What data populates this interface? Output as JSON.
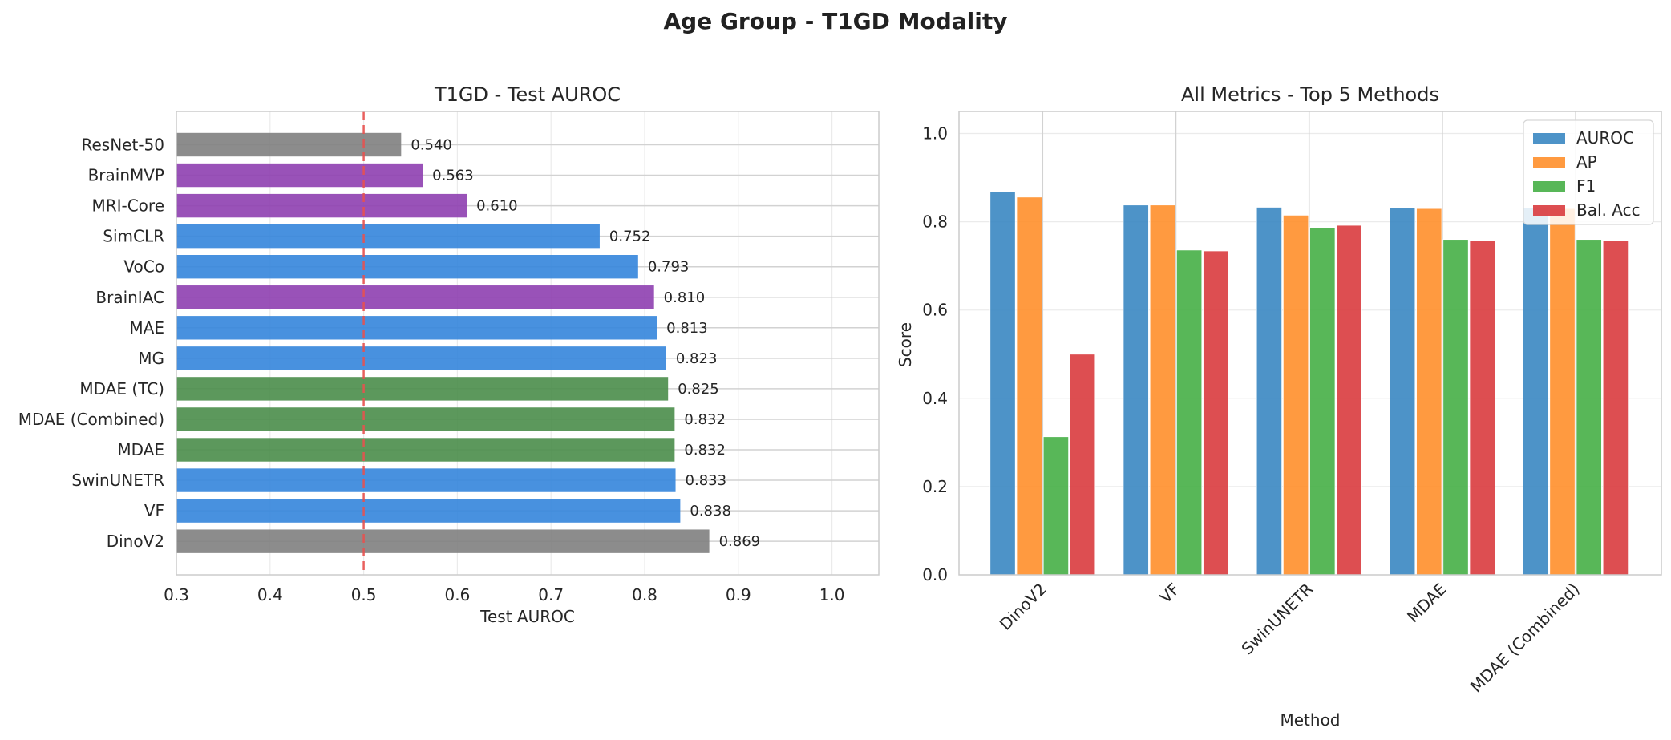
{
  "figure": {
    "title": "Age Group - T1GD Modality"
  },
  "chart_data": [
    {
      "type": "bar",
      "orientation": "horizontal",
      "title": "T1GD - Test AUROC",
      "xlabel": "Test AUROC",
      "ylabel": "",
      "xlim": [
        0.3,
        1.05
      ],
      "xticks": [
        "0.3",
        "0.4",
        "0.5",
        "0.6",
        "0.7",
        "0.8",
        "0.9",
        "1.0"
      ],
      "grid": true,
      "reference_line": {
        "x": 0.5,
        "style": "dashed",
        "color": "#e8514f"
      },
      "categories": [
        "ResNet-50",
        "BrainMVP",
        "MRI-Core",
        "SimCLR",
        "VoCo",
        "BrainIAC",
        "MAE",
        "MG",
        "MDAE (TC)",
        "MDAE (Combined)",
        "MDAE",
        "SwinUNETR",
        "VF",
        "DinoV2"
      ],
      "values": [
        0.54,
        0.563,
        0.61,
        0.752,
        0.793,
        0.81,
        0.813,
        0.823,
        0.825,
        0.832,
        0.832,
        0.833,
        0.838,
        0.869
      ],
      "value_labels": [
        "0.540",
        "0.563",
        "0.610",
        "0.752",
        "0.793",
        "0.810",
        "0.813",
        "0.823",
        "0.825",
        "0.832",
        "0.832",
        "0.833",
        "0.838",
        "0.869"
      ],
      "bar_colors": [
        "#808080",
        "#8e3fb0",
        "#8e3fb0",
        "#3485dc",
        "#3485dc",
        "#8e3fb0",
        "#3485dc",
        "#3485dc",
        "#4a8d4a",
        "#4a8d4a",
        "#4a8d4a",
        "#3485dc",
        "#3485dc",
        "#808080"
      ]
    },
    {
      "type": "bar",
      "title": "All Metrics - Top 5 Methods",
      "xlabel": "Method",
      "ylabel": "Score",
      "ylim": [
        0,
        1.05
      ],
      "yticks": [
        "0.0",
        "0.2",
        "0.4",
        "0.6",
        "0.8",
        "1.0"
      ],
      "grid": true,
      "legend_position": "top-right",
      "categories": [
        "DinoV2",
        "VF",
        "SwinUNETR",
        "MDAE",
        "MDAE (Combined)"
      ],
      "series": [
        {
          "name": "AUROC",
          "color": "#3a87c2",
          "values": [
            0.869,
            0.838,
            0.833,
            0.832,
            0.832
          ]
        },
        {
          "name": "AP",
          "color": "#ff8f2b",
          "values": [
            0.856,
            0.838,
            0.815,
            0.83,
            0.83
          ]
        },
        {
          "name": "F1",
          "color": "#46af46",
          "values": [
            0.313,
            0.736,
            0.787,
            0.76,
            0.76
          ]
        },
        {
          "name": "Bal. Acc",
          "color": "#d93b3e",
          "values": [
            0.5,
            0.734,
            0.792,
            0.758,
            0.758
          ]
        }
      ]
    }
  ]
}
